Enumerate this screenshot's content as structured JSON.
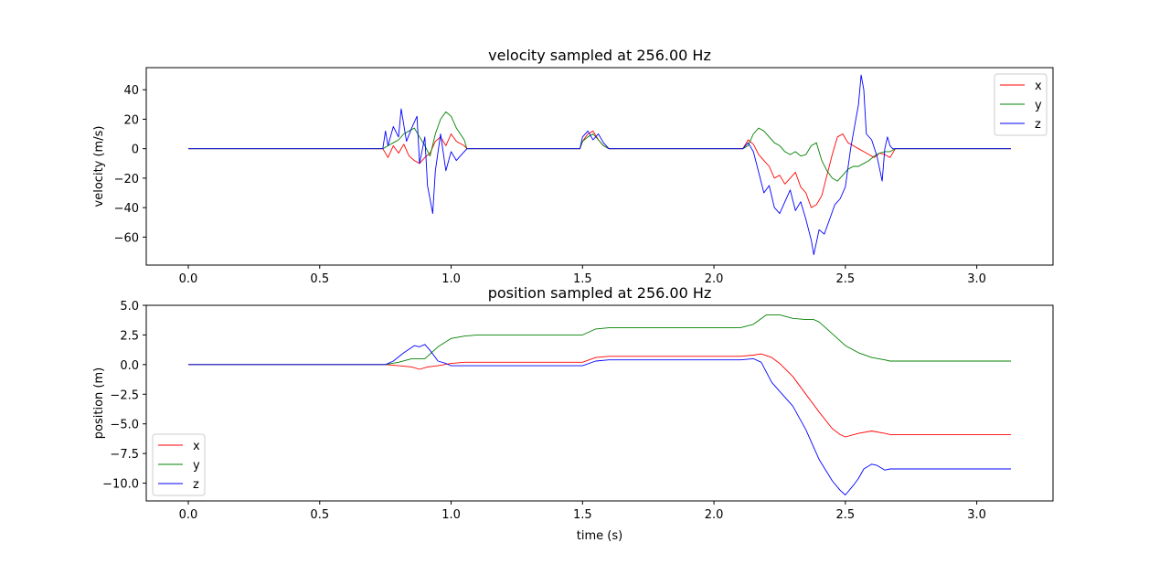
{
  "chart_data": [
    {
      "type": "line",
      "title": "velocity sampled at 256.00 Hz",
      "xlabel": "",
      "ylabel": "velocity (m/s)",
      "xlim": [
        -0.16,
        3.29
      ],
      "ylim": [
        -79,
        55
      ],
      "xticks": [
        0.0,
        0.5,
        1.0,
        1.5,
        2.0,
        2.5,
        3.0
      ],
      "xtick_labels": [
        "0.0",
        "0.5",
        "1.0",
        "1.5",
        "2.0",
        "2.5",
        "3.0"
      ],
      "yticks": [
        -60,
        -40,
        -20,
        0,
        20,
        40
      ],
      "ytick_labels": [
        "−60",
        "−40",
        "−20",
        "0",
        "20",
        "40"
      ],
      "legend": "top-right",
      "grid": false,
      "series": [
        {
          "name": "x",
          "color": "#ff0000",
          "x": [
            0.0,
            0.74,
            0.76,
            0.78,
            0.8,
            0.82,
            0.84,
            0.86,
            0.88,
            0.9,
            0.92,
            0.94,
            0.96,
            0.98,
            1.0,
            1.02,
            1.05,
            1.06,
            1.49,
            1.5,
            1.52,
            1.54,
            1.56,
            1.58,
            1.6,
            2.11,
            2.13,
            2.15,
            2.17,
            2.19,
            2.21,
            2.23,
            2.25,
            2.27,
            2.29,
            2.31,
            2.33,
            2.35,
            2.37,
            2.39,
            2.41,
            2.43,
            2.45,
            2.47,
            2.49,
            2.51,
            2.53,
            2.55,
            2.57,
            2.59,
            2.61,
            2.63,
            2.65,
            2.67,
            2.69,
            3.13
          ],
          "y": [
            0,
            0,
            -6,
            2,
            -3,
            3,
            -5,
            -8,
            -10,
            -6,
            -3,
            5,
            8,
            2,
            10,
            5,
            2,
            0,
            0,
            5,
            10,
            12,
            6,
            2,
            0,
            0,
            6,
            3,
            -4,
            -8,
            -12,
            -20,
            -18,
            -24,
            -20,
            -16,
            -26,
            -30,
            -40,
            -38,
            -32,
            -18,
            -4,
            8,
            10,
            4,
            2,
            0,
            -2,
            -4,
            -6,
            -3,
            -4,
            -6,
            0,
            0
          ]
        },
        {
          "name": "y",
          "color": "#008000",
          "x": [
            0.0,
            0.74,
            0.76,
            0.78,
            0.8,
            0.82,
            0.84,
            0.86,
            0.88,
            0.9,
            0.92,
            0.94,
            0.96,
            0.98,
            1.0,
            1.02,
            1.05,
            1.06,
            1.49,
            1.5,
            1.52,
            1.54,
            1.56,
            1.58,
            1.6,
            2.11,
            2.13,
            2.15,
            2.17,
            2.19,
            2.21,
            2.23,
            2.25,
            2.27,
            2.29,
            2.31,
            2.33,
            2.35,
            2.37,
            2.39,
            2.41,
            2.43,
            2.45,
            2.47,
            2.49,
            2.51,
            2.53,
            2.55,
            2.57,
            2.59,
            2.61,
            2.63,
            2.65,
            2.67,
            2.69,
            3.13
          ],
          "y": [
            0,
            0,
            2,
            4,
            6,
            10,
            12,
            14,
            8,
            2,
            -5,
            10,
            20,
            25,
            22,
            14,
            6,
            0,
            0,
            5,
            8,
            10,
            6,
            2,
            0,
            0,
            2,
            10,
            14,
            12,
            8,
            4,
            2,
            -2,
            -4,
            -2,
            -5,
            -4,
            2,
            4,
            -8,
            -15,
            -20,
            -22,
            -18,
            -14,
            -12,
            -12,
            -10,
            -8,
            -5,
            -3,
            -2,
            -2,
            0,
            0
          ]
        },
        {
          "name": "z",
          "color": "#0000ff",
          "x": [
            0.0,
            0.74,
            0.75,
            0.76,
            0.78,
            0.8,
            0.81,
            0.83,
            0.85,
            0.87,
            0.88,
            0.9,
            0.91,
            0.93,
            0.94,
            0.96,
            0.98,
            1.0,
            1.02,
            1.04,
            1.06,
            1.49,
            1.5,
            1.52,
            1.54,
            1.56,
            1.58,
            1.6,
            2.11,
            2.13,
            2.15,
            2.17,
            2.19,
            2.21,
            2.23,
            2.25,
            2.27,
            2.29,
            2.31,
            2.33,
            2.35,
            2.37,
            2.38,
            2.4,
            2.42,
            2.44,
            2.46,
            2.48,
            2.5,
            2.52,
            2.54,
            2.55,
            2.56,
            2.57,
            2.58,
            2.6,
            2.62,
            2.64,
            2.65,
            2.66,
            2.67,
            2.68,
            3.13
          ],
          "y": [
            0,
            0,
            12,
            2,
            15,
            8,
            27,
            5,
            14,
            22,
            -10,
            8,
            -25,
            -44,
            -15,
            10,
            -15,
            -2,
            -8,
            -4,
            0,
            0,
            8,
            12,
            6,
            10,
            4,
            0,
            0,
            4,
            -2,
            -16,
            -30,
            -25,
            -40,
            -44,
            -36,
            -28,
            -42,
            -36,
            -48,
            -62,
            -72,
            -55,
            -58,
            -48,
            -38,
            -34,
            -26,
            0,
            20,
            30,
            50,
            40,
            10,
            6,
            -5,
            -22,
            0,
            8,
            2,
            0,
            0
          ]
        }
      ]
    },
    {
      "type": "line",
      "title": "position sampled at 256.00 Hz",
      "xlabel": "time (s)",
      "ylabel": "position (m)",
      "xlim": [
        -0.16,
        3.29
      ],
      "ylim": [
        -11.5,
        5.0
      ],
      "xticks": [
        0.0,
        0.5,
        1.0,
        1.5,
        2.0,
        2.5,
        3.0
      ],
      "xtick_labels": [
        "0.0",
        "0.5",
        "1.0",
        "1.5",
        "2.0",
        "2.5",
        "3.0"
      ],
      "yticks": [
        -10.0,
        -7.5,
        -5.0,
        -2.5,
        0.0,
        2.5,
        5.0
      ],
      "ytick_labels": [
        "−10.0",
        "−7.5",
        "−5.0",
        "−2.5",
        "0.0",
        "2.5",
        "5.0"
      ],
      "legend": "lower-left",
      "grid": false,
      "series": [
        {
          "name": "x",
          "color": "#ff0000",
          "x": [
            0.0,
            0.75,
            0.8,
            0.85,
            0.88,
            0.91,
            0.95,
            1.0,
            1.05,
            1.5,
            1.55,
            1.6,
            2.1,
            2.15,
            2.18,
            2.22,
            2.25,
            2.3,
            2.35,
            2.4,
            2.45,
            2.48,
            2.5,
            2.55,
            2.6,
            2.65,
            2.67,
            3.13
          ],
          "y": [
            0,
            0,
            -0.1,
            -0.2,
            -0.4,
            -0.2,
            -0.1,
            0.1,
            0.2,
            0.2,
            0.6,
            0.7,
            0.7,
            0.8,
            0.9,
            0.6,
            0.1,
            -1.0,
            -2.5,
            -4.0,
            -5.4,
            -5.9,
            -6.1,
            -5.8,
            -5.6,
            -5.8,
            -5.9,
            -5.9
          ]
        },
        {
          "name": "y",
          "color": "#008000",
          "x": [
            0.0,
            0.75,
            0.8,
            0.85,
            0.9,
            0.95,
            1.0,
            1.05,
            1.1,
            1.5,
            1.55,
            1.6,
            2.1,
            2.15,
            2.2,
            2.25,
            2.3,
            2.35,
            2.38,
            2.4,
            2.45,
            2.5,
            2.55,
            2.6,
            2.65,
            2.67,
            3.13
          ],
          "y": [
            0,
            0,
            0.2,
            0.5,
            0.5,
            1.5,
            2.2,
            2.4,
            2.5,
            2.5,
            3.0,
            3.1,
            3.1,
            3.4,
            4.2,
            4.2,
            3.9,
            3.8,
            3.8,
            3.6,
            2.6,
            1.6,
            1.0,
            0.6,
            0.4,
            0.3,
            0.3
          ]
        },
        {
          "name": "z",
          "color": "#0000ff",
          "x": [
            0.0,
            0.75,
            0.78,
            0.82,
            0.86,
            0.88,
            0.9,
            0.92,
            0.95,
            0.98,
            1.0,
            1.05,
            1.5,
            1.55,
            1.6,
            2.1,
            2.15,
            2.18,
            2.22,
            2.26,
            2.3,
            2.35,
            2.4,
            2.45,
            2.48,
            2.5,
            2.53,
            2.55,
            2.57,
            2.6,
            2.62,
            2.65,
            2.67,
            3.13
          ],
          "y": [
            0,
            0,
            0.3,
            1.0,
            1.6,
            1.5,
            1.7,
            1.2,
            0.3,
            0.1,
            -0.1,
            -0.1,
            -0.1,
            0.3,
            0.4,
            0.4,
            0.5,
            0.2,
            -1.5,
            -2.5,
            -3.5,
            -5.5,
            -8.0,
            -9.8,
            -10.6,
            -11.0,
            -10.2,
            -9.6,
            -8.8,
            -8.4,
            -8.5,
            -8.9,
            -8.8,
            -8.8
          ]
        }
      ]
    }
  ]
}
